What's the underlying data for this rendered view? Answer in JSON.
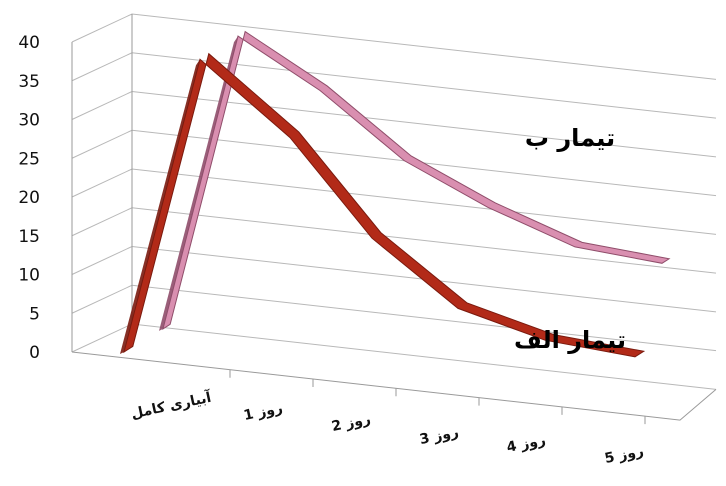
{
  "chart_data": {
    "type": "line",
    "categories": [
      "",
      "آبیاری کامل",
      "روز 1",
      "روز 2",
      "روز 3",
      "روز 4",
      "روز 5"
    ],
    "series": [
      {
        "name": "تیمار الف",
        "values": [
          0,
          39,
          30,
          18,
          10,
          7,
          6
        ],
        "color": "#b22a18"
      },
      {
        "name": "تیمار ب",
        "values": [
          0,
          39,
          33,
          25,
          20,
          16,
          15
        ],
        "color": "#d98fb0"
      }
    ],
    "y_ticks": [
      "0",
      "5",
      "10",
      "15",
      "20",
      "25",
      "30",
      "35",
      "40"
    ],
    "ylim": [
      0,
      40
    ],
    "grid": true,
    "style": "3d-line",
    "title": "",
    "xlabel": "",
    "ylabel": ""
  }
}
